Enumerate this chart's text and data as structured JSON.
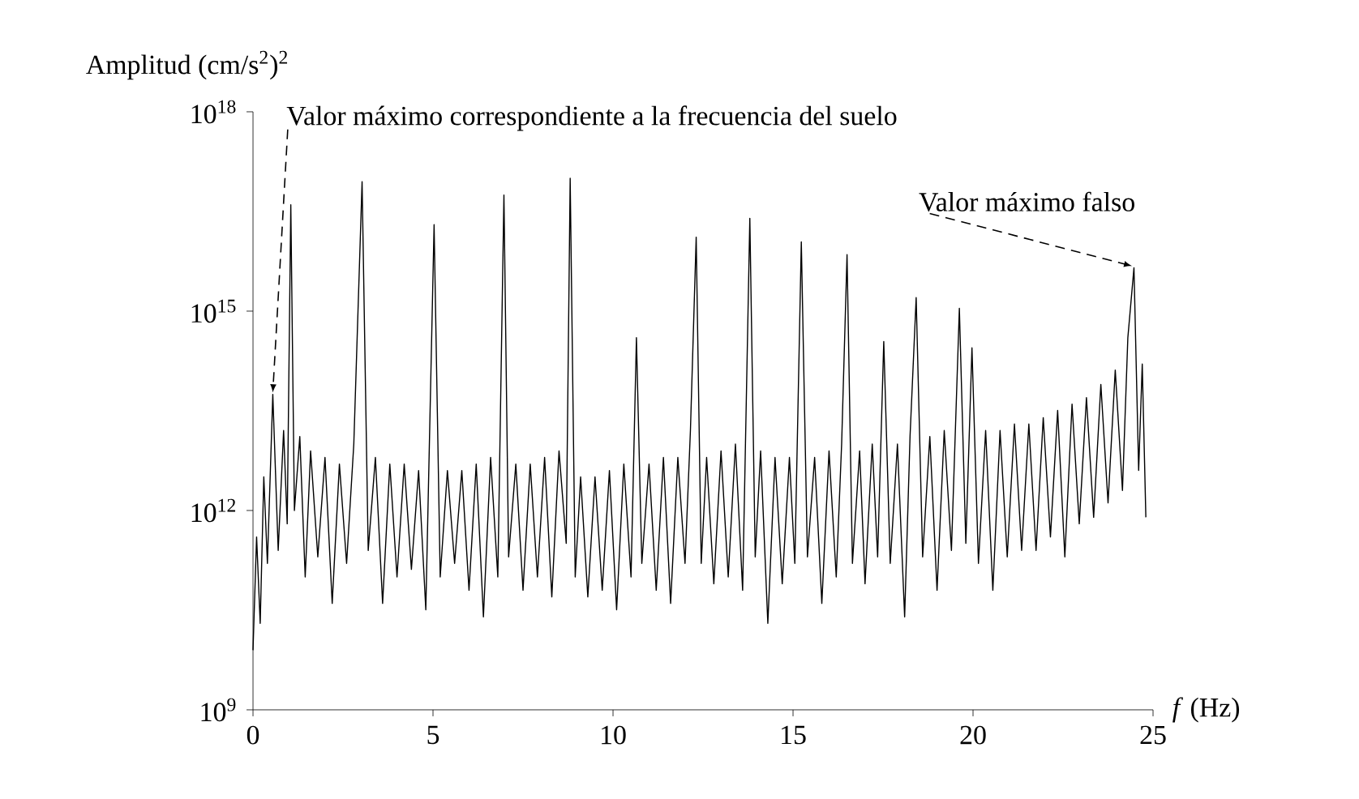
{
  "chart_data": {
    "type": "line",
    "xlabel": "*f* (Hz)",
    "ylabel": "Amplitud (cm/s$^{2}$)$^{2}$",
    "log": "y",
    "line_style": "solid",
    "xlim": [
      0,
      25
    ],
    "xticks": [
      0,
      5,
      10,
      15,
      20,
      25
    ],
    "ylim": [
      1000000000.0,
      1e+18
    ],
    "yticks": [
      {
        "value": 1000000000.0,
        "label": "10$^{9}$"
      },
      {
        "value": 1000000000000.0,
        "label": "10$^{12}$"
      },
      {
        "value": 1000000000000000.0,
        "label": "10$^{15}$"
      },
      {
        "value": 1e+18,
        "label": "10$^{18}$"
      }
    ],
    "annotations": [
      {
        "text": "Valor máximo correspondiente a la frecuencia del suelo",
        "x": 0.55,
        "y": 56000000000000.0
      },
      {
        "text": "Valor máximo falso",
        "x": 24.47,
        "y": 4500000000000000.0
      }
    ],
    "x": [
      0,
      0.1,
      0.2,
      0.3,
      0.4,
      0.55,
      0.7,
      0.85,
      0.95,
      1.05,
      1.15,
      1.3,
      1.45,
      1.6,
      1.8,
      2.0,
      2.2,
      2.4,
      2.6,
      2.8,
      3.03,
      3.2,
      3.4,
      3.6,
      3.8,
      4.0,
      4.2,
      4.4,
      4.6,
      4.8,
      5.03,
      5.2,
      5.4,
      5.6,
      5.8,
      6.0,
      6.2,
      6.4,
      6.6,
      6.8,
      6.97,
      7.1,
      7.3,
      7.5,
      7.7,
      7.9,
      8.1,
      8.3,
      8.5,
      8.7,
      8.81,
      8.95,
      9.1,
      9.3,
      9.5,
      9.7,
      9.9,
      10.1,
      10.3,
      10.5,
      10.65,
      10.8,
      11.0,
      11.2,
      11.4,
      11.6,
      11.8,
      12.0,
      12.15,
      12.31,
      12.45,
      12.6,
      12.8,
      13.0,
      13.2,
      13.4,
      13.6,
      13.8,
      13.95,
      14.1,
      14.3,
      14.5,
      14.7,
      14.9,
      15.05,
      15.23,
      15.4,
      15.6,
      15.8,
      16.0,
      16.2,
      16.35,
      16.5,
      16.65,
      16.85,
      17.0,
      17.2,
      17.35,
      17.52,
      17.7,
      17.9,
      18.1,
      18.25,
      18.42,
      18.6,
      18.8,
      19.0,
      19.2,
      19.4,
      19.62,
      19.8,
      19.97,
      20.15,
      20.35,
      20.55,
      20.75,
      20.95,
      21.15,
      21.35,
      21.55,
      21.75,
      21.95,
      22.15,
      22.35,
      22.55,
      22.75,
      22.95,
      23.15,
      23.35,
      23.55,
      23.75,
      23.95,
      24.15,
      24.3,
      24.47,
      24.6,
      24.7,
      24.8
    ],
    "series": [
      {
        "color": "#000000",
        "values": [
          7900000000.0,
          400000000000.0,
          20000000000.0,
          3200000000000.0,
          160000000000.0,
          56000000000000.0,
          250000000000.0,
          16000000000000.0,
          630000000000.0,
          4e+16,
          1000000000000.0,
          13000000000000.0,
          100000000000.0,
          7900000000000.0,
          200000000000.0,
          6300000000000.0,
          40000000000.0,
          5000000000000.0,
          160000000000.0,
          10000000000000.0,
          8.9e+16,
          250000000000.0,
          6300000000000.0,
          40000000000.0,
          5000000000000.0,
          100000000000.0,
          5000000000000.0,
          130000000000.0,
          4000000000000.0,
          32000000000.0,
          2e+16,
          100000000000.0,
          4000000000000.0,
          160000000000.0,
          4000000000000.0,
          63000000000.0,
          5000000000000.0,
          25000000000.0,
          6300000000000.0,
          100000000000.0,
          5.6e+16,
          200000000000.0,
          5000000000000.0,
          63000000000.0,
          5000000000000.0,
          100000000000.0,
          6300000000000.0,
          50000000000.0,
          7900000000000.0,
          320000000000.0,
          1e+17,
          100000000000.0,
          3200000000000.0,
          50000000000.0,
          3200000000000.0,
          63000000000.0,
          4000000000000.0,
          32000000000.0,
          5000000000000.0,
          100000000000.0,
          400000000000000.0,
          160000000000.0,
          5000000000000.0,
          63000000000.0,
          6300000000000.0,
          40000000000.0,
          6300000000000.0,
          160000000000.0,
          16000000000000.0,
          1.3e+16,
          160000000000.0,
          6300000000000.0,
          79000000000.0,
          7900000000000.0,
          100000000000.0,
          10000000000000.0,
          63000000000.0,
          2.5e+16,
          200000000000.0,
          7900000000000.0,
          20000000000.0,
          6300000000000.0,
          79000000000.0,
          6300000000000.0,
          160000000000.0,
          1.1e+16,
          200000000000.0,
          6300000000000.0,
          40000000000.0,
          7900000000000.0,
          100000000000.0,
          10000000000000.0,
          7100000000000000.0,
          160000000000.0,
          7900000000000.0,
          79000000000.0,
          10000000000000.0,
          200000000000.0,
          350000000000000.0,
          160000000000.0,
          10000000000000.0,
          25000000000.0,
          13000000000000.0,
          1600000000000000.0,
          200000000000.0,
          13000000000000.0,
          63000000000.0,
          16000000000000.0,
          250000000000.0,
          1100000000000000.0,
          320000000000.0,
          280000000000000.0,
          160000000000.0,
          16000000000000.0,
          63000000000.0,
          16000000000000.0,
          200000000000.0,
          20000000000000.0,
          250000000000.0,
          20000000000000.0,
          250000000000.0,
          25000000000000.0,
          400000000000.0,
          32000000000000.0,
          200000000000.0,
          40000000000000.0,
          630000000000.0,
          50000000000000.0,
          790000000000.0,
          79000000000000.0,
          1300000000000.0,
          130000000000000.0,
          2000000000000.0,
          400000000000000.0,
          4500000000000000.0,
          4000000000000.0,
          160000000000000.0,
          790000000000.0
        ]
      }
    ]
  }
}
